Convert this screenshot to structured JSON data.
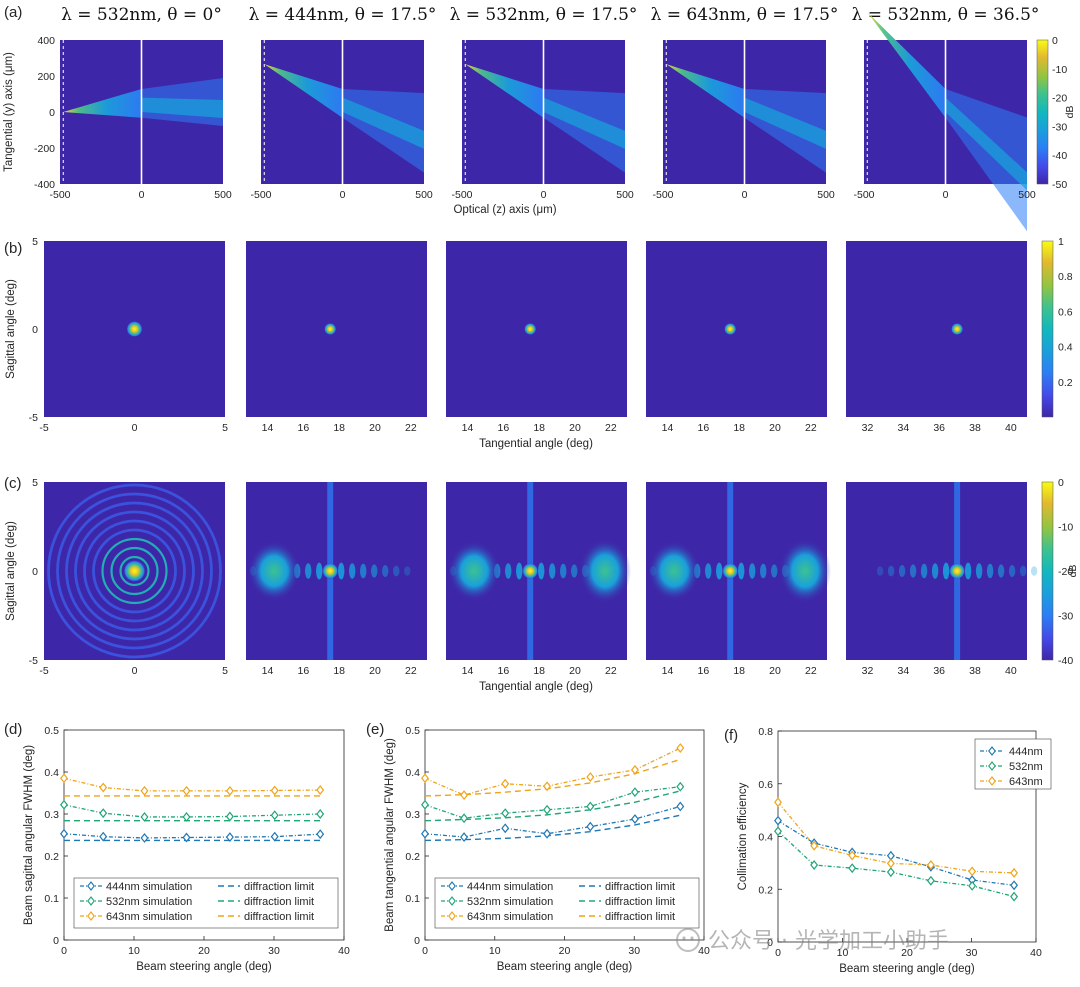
{
  "colors": {
    "background": "#ffffff",
    "map_low": "#3e26a8",
    "map_mid": "#2eb7a1",
    "map_high": "#f9fb15",
    "series_444": "#1f77b4",
    "series_532": "#20a574",
    "series_643": "#f0a318"
  },
  "panel_labels": [
    "(a)",
    "(b)",
    "(c)",
    "(d)",
    "(e)",
    "(f)"
  ],
  "row_a": {
    "titles": [
      "λ = 532nm, θ = 0°",
      "λ = 444nm, θ = 17.5°",
      "λ = 532nm, θ = 17.5°",
      "λ = 643nm, θ = 17.5°",
      "λ = 532nm, θ = 36.5°"
    ],
    "steer_deg": [
      0,
      17.5,
      17.5,
      17.5,
      36.5
    ],
    "xlabel": "Optical (z) axis (μm)",
    "ylabel": "Tangential (y) axis (μm)",
    "x_ticks": [
      "-500",
      "0",
      "500"
    ],
    "y_ticks": [
      "400",
      "200",
      "0",
      "-200",
      "-400"
    ],
    "colorbar_ticks": [
      "0",
      "-10",
      "-20",
      "-30",
      "-40",
      "-50"
    ],
    "colorbar_unit": "dB",
    "colorbar_range": [
      -50,
      0
    ]
  },
  "row_b": {
    "ylabel": "Sagittal angle (deg)",
    "xlabel": "Tangential angle (deg)",
    "y_ticks": [
      "5",
      "0",
      "-5"
    ],
    "x_ticks": [
      [
        "-5",
        "0",
        "5"
      ],
      [
        "14",
        "16",
        "18",
        "20",
        "22"
      ],
      [
        "14",
        "16",
        "18",
        "20",
        "22"
      ],
      [
        "14",
        "16",
        "18",
        "20",
        "22"
      ],
      [
        "32",
        "34",
        "36",
        "38",
        "40"
      ]
    ],
    "spot_center_deg": [
      0,
      17.5,
      17.5,
      17.5,
      37
    ],
    "colorbar_ticks": [
      "1",
      "0.8",
      "0.6",
      "0.4",
      "0.2"
    ],
    "colorbar_range": [
      0,
      1
    ]
  },
  "row_c": {
    "ylabel": "Sagittal angle (deg)",
    "xlabel": "Tangential angle (deg)",
    "y_ticks": [
      "5",
      "0",
      "-5"
    ],
    "x_ticks": [
      [
        "-5",
        "0",
        "5"
      ],
      [
        "14",
        "16",
        "18",
        "20",
        "22"
      ],
      [
        "14",
        "16",
        "18",
        "20",
        "22"
      ],
      [
        "14",
        "16",
        "18",
        "20",
        "22"
      ],
      [
        "32",
        "34",
        "36",
        "38",
        "40"
      ]
    ],
    "colorbar_ticks": [
      "0",
      "-10",
      "-20",
      "-30",
      "-40"
    ],
    "colorbar_unit": "dB",
    "colorbar_range": [
      -40,
      0
    ]
  },
  "chart_data": [
    {
      "type": "line",
      "panel": "(d)",
      "xlabel": "Beam steering angle (deg)",
      "ylabel": "Beam sagittal angular FWHM (deg)",
      "xlim": [
        0,
        40
      ],
      "ylim": [
        0,
        0.5
      ],
      "x_ticks": [
        "0",
        "10",
        "20",
        "30",
        "40"
      ],
      "y_ticks": [
        "0",
        "0.1",
        "0.2",
        "0.3",
        "0.4",
        "0.5"
      ],
      "x": [
        0,
        5.6,
        11.5,
        17.5,
        23.7,
        30.1,
        36.6
      ],
      "series": [
        {
          "name": "444nm simulation",
          "color_key": "series_444",
          "values": [
            0.253,
            0.246,
            0.243,
            0.244,
            0.245,
            0.246,
            0.252
          ],
          "limit_name": "diffraction limit",
          "limit": [
            0.237,
            0.237,
            0.237,
            0.237,
            0.237,
            0.237,
            0.237
          ]
        },
        {
          "name": "532nm simulation",
          "color_key": "series_532",
          "values": [
            0.322,
            0.302,
            0.293,
            0.293,
            0.294,
            0.297,
            0.3
          ],
          "limit_name": "diffraction limit",
          "limit": [
            0.284,
            0.284,
            0.284,
            0.284,
            0.284,
            0.284,
            0.284
          ]
        },
        {
          "name": "643nm simulation",
          "color_key": "series_643",
          "values": [
            0.385,
            0.363,
            0.355,
            0.355,
            0.355,
            0.356,
            0.357
          ],
          "limit_name": "diffraction limit",
          "limit": [
            0.343,
            0.343,
            0.343,
            0.343,
            0.343,
            0.343,
            0.343
          ]
        }
      ]
    },
    {
      "type": "line",
      "panel": "(e)",
      "xlabel": "Beam steering angle (deg)",
      "ylabel": "Beam tangential angular FWHM (deg)",
      "xlim": [
        0,
        40
      ],
      "ylim": [
        0,
        0.5
      ],
      "x_ticks": [
        "0",
        "10",
        "20",
        "30",
        "40"
      ],
      "y_ticks": [
        "0",
        "0.1",
        "0.2",
        "0.3",
        "0.4",
        "0.5"
      ],
      "x": [
        0,
        5.6,
        11.5,
        17.5,
        23.7,
        30.1,
        36.6
      ],
      "series": [
        {
          "name": "444nm simulation",
          "color_key": "series_444",
          "values": [
            0.253,
            0.245,
            0.266,
            0.253,
            0.27,
            0.288,
            0.318
          ],
          "limit_name": "diffraction limit",
          "limit": [
            0.237,
            0.239,
            0.242,
            0.248,
            0.258,
            0.274,
            0.297
          ]
        },
        {
          "name": "532nm simulation",
          "color_key": "series_532",
          "values": [
            0.322,
            0.29,
            0.302,
            0.31,
            0.318,
            0.352,
            0.365
          ],
          "limit_name": "diffraction limit",
          "limit": [
            0.284,
            0.287,
            0.291,
            0.298,
            0.31,
            0.328,
            0.355
          ]
        },
        {
          "name": "643nm simulation",
          "color_key": "series_643",
          "values": [
            0.385,
            0.345,
            0.372,
            0.366,
            0.388,
            0.405,
            0.457
          ],
          "limit_name": "diffraction limit",
          "limit": [
            0.343,
            0.346,
            0.352,
            0.36,
            0.374,
            0.396,
            0.43
          ]
        }
      ]
    },
    {
      "type": "line",
      "panel": "(f)",
      "xlabel": "Beam steering angle (deg)",
      "ylabel": "Collimation efficiency",
      "xlim": [
        0,
        40
      ],
      "ylim": [
        0,
        0.8
      ],
      "x_ticks": [
        "0",
        "10",
        "20",
        "30",
        "40"
      ],
      "y_ticks": [
        "0",
        "0.2",
        "0.4",
        "0.6",
        "0.8"
      ],
      "x": [
        0,
        5.6,
        11.5,
        17.5,
        23.7,
        30.1,
        36.6
      ],
      "series": [
        {
          "name": "444nm",
          "color_key": "series_444",
          "values": [
            0.46,
            0.375,
            0.34,
            0.327,
            0.285,
            0.235,
            0.215
          ]
        },
        {
          "name": "532nm",
          "color_key": "series_532",
          "values": [
            0.42,
            0.292,
            0.28,
            0.265,
            0.232,
            0.213,
            0.172
          ]
        },
        {
          "name": "643nm",
          "color_key": "series_643",
          "values": [
            0.53,
            0.365,
            0.328,
            0.298,
            0.292,
            0.268,
            0.262
          ]
        }
      ]
    }
  ],
  "watermark": "公众号 · 光学加工小助手"
}
